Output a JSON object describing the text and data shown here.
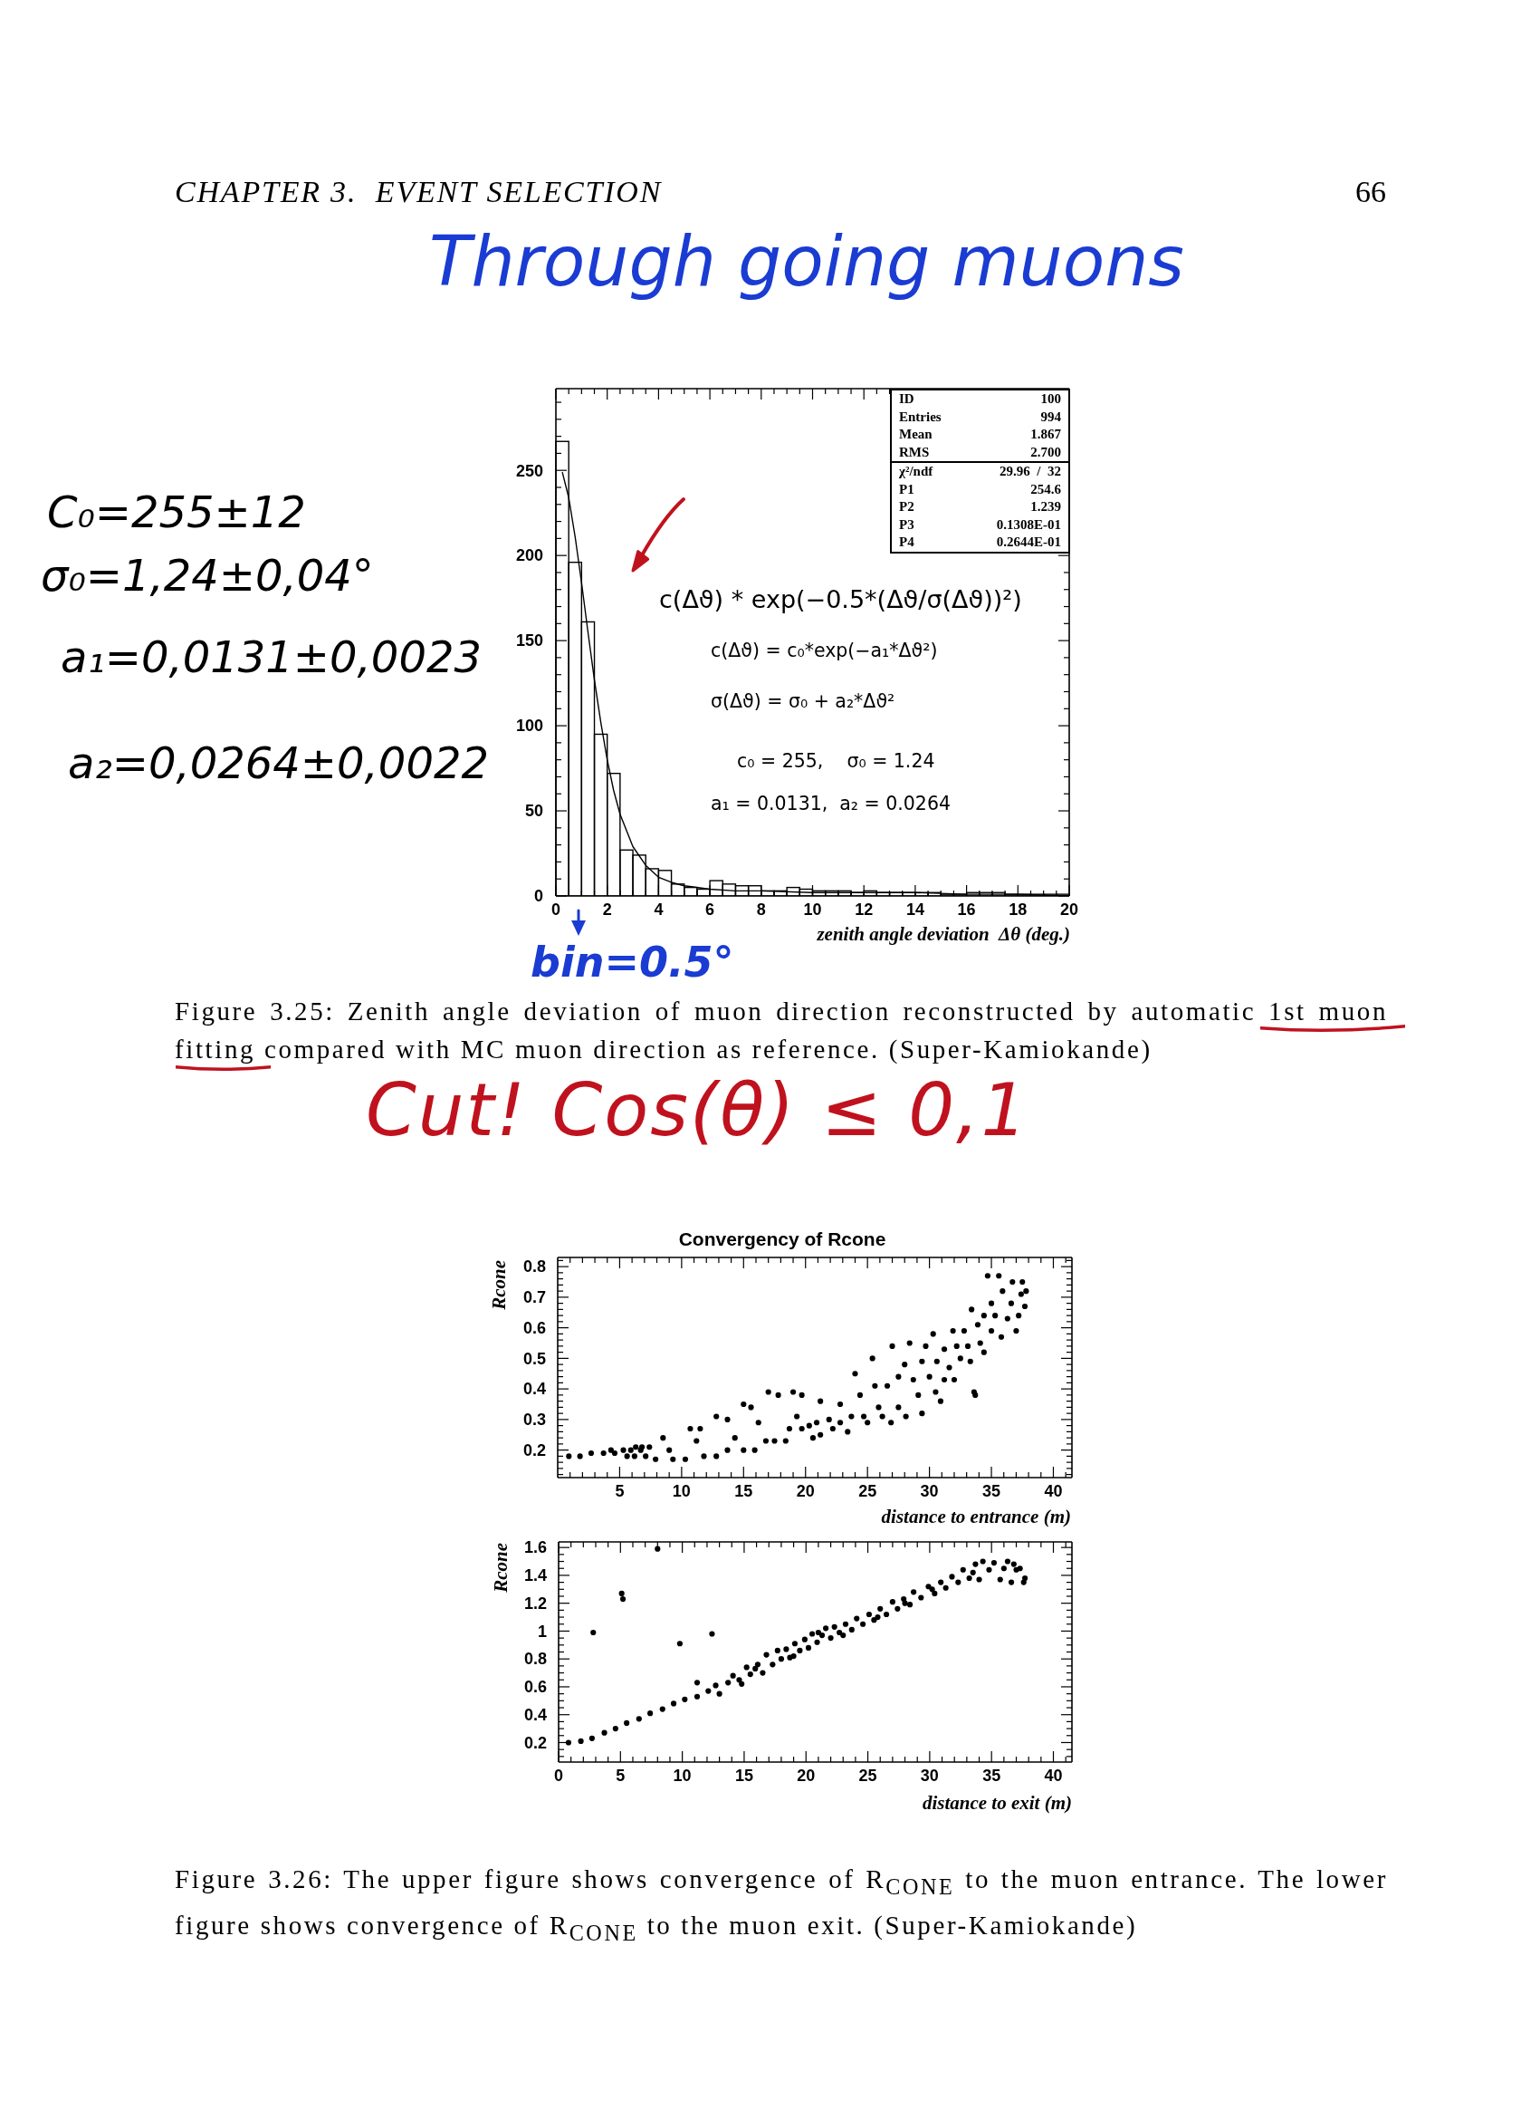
{
  "chart_data": [
    {
      "type": "histogram",
      "title": "Through going muons",
      "xlabel": "zenith angle deviation  Δθ (deg.)",
      "bins": [
        0,
        0.5,
        1,
        1.5,
        2,
        2.5,
        3,
        3.5,
        4,
        4.5,
        5,
        5.5,
        6,
        6.5,
        7,
        7.5,
        8,
        8.5,
        9,
        9.5,
        10,
        10.5,
        11,
        11.5,
        12,
        12.5,
        13,
        13.5,
        14,
        14.5,
        15,
        15.5,
        16,
        16.5,
        17,
        17.5,
        18,
        18.5,
        19,
        19.5,
        20
      ],
      "series": [
        {
          "type": "histogram",
          "color": "#000000",
          "values": [
            267,
            196,
            161,
            95,
            72,
            27,
            24,
            16,
            15,
            7,
            5,
            4,
            9,
            7,
            6,
            6,
            3,
            3,
            5,
            4,
            3,
            3,
            3,
            2,
            3,
            2,
            2,
            2,
            2,
            2,
            1,
            1,
            2,
            2,
            2,
            1,
            1,
            1,
            1,
            1
          ]
        },
        {
          "type": "line",
          "color": "#000000",
          "x": [
            0.25,
            0.5,
            0.75,
            1,
            1.25,
            1.5,
            1.75,
            2,
            2.25,
            2.5,
            3,
            3.5,
            4,
            4.5,
            5,
            6,
            7,
            8,
            10,
            12,
            14,
            16,
            18,
            20
          ],
          "values": [
            249,
            234,
            211,
            184,
            155,
            127,
            102,
            80,
            62,
            48,
            29,
            18,
            11,
            8,
            6,
            4,
            3,
            3,
            2,
            2,
            2,
            1,
            1,
            0
          ]
        }
      ],
      "xlim": [
        0,
        20
      ],
      "xticks": [
        0,
        {
          "value": 0.5,
          "label": null
        },
        {
          "value": 1,
          "label": null
        },
        {
          "value": 1.5,
          "label": null
        },
        2,
        {
          "value": 2.5,
          "label": null
        },
        {
          "value": 3,
          "label": null
        },
        {
          "value": 3.5,
          "label": null
        },
        4,
        {
          "value": 4.5,
          "label": null
        },
        {
          "value": 5,
          "label": null
        },
        {
          "value": 5.5,
          "label": null
        },
        6,
        {
          "value": 6.5,
          "label": null
        },
        {
          "value": 7,
          "label": null
        },
        {
          "value": 7.5,
          "label": null
        },
        8,
        {
          "value": 8.5,
          "label": null
        },
        {
          "value": 9,
          "label": null
        },
        {
          "value": 9.5,
          "label": null
        },
        10,
        {
          "value": 10.5,
          "label": null
        },
        {
          "value": 11,
          "label": null
        },
        {
          "value": 11.5,
          "label": null
        },
        12,
        {
          "value": 12.5,
          "label": null
        },
        {
          "value": 13,
          "label": null
        },
        {
          "value": 13.5,
          "label": null
        },
        14,
        {
          "value": 14.5,
          "label": null
        },
        {
          "value": 15,
          "label": null
        },
        {
          "value": 15.5,
          "label": null
        },
        16,
        {
          "value": 16.5,
          "label": null
        },
        {
          "value": 17,
          "label": null
        },
        {
          "value": 17.5,
          "label": null
        },
        18,
        {
          "value": 18.5,
          "label": null
        },
        {
          "value": 19,
          "label": null
        },
        {
          "value": 19.5,
          "label": null
        },
        20
      ],
      "ylim": [
        0,
        298
      ],
      "yticks": [
        0,
        {
          "value": 10,
          "label": null
        },
        {
          "value": 20,
          "label": null
        },
        {
          "value": 30,
          "label": null
        },
        {
          "value": 40,
          "label": null
        },
        50,
        {
          "value": 60,
          "label": null
        },
        {
          "value": 70,
          "label": null
        },
        {
          "value": 80,
          "label": null
        },
        {
          "value": 90,
          "label": null
        },
        100,
        {
          "value": 110,
          "label": null
        },
        {
          "value": 120,
          "label": null
        },
        {
          "value": 130,
          "label": null
        },
        {
          "value": 140,
          "label": null
        },
        150,
        {
          "value": 160,
          "label": null
        },
        {
          "value": 170,
          "label": null
        },
        {
          "value": 180,
          "label": null
        },
        {
          "value": 190,
          "label": null
        },
        200,
        {
          "value": 210,
          "label": null
        },
        {
          "value": 220,
          "label": null
        },
        {
          "value": 230,
          "label": null
        },
        {
          "value": 240,
          "label": null
        },
        250,
        {
          "value": 260,
          "label": null
        },
        {
          "value": 270,
          "label": null
        },
        {
          "value": 280,
          "label": null
        },
        {
          "value": 290,
          "label": null
        }
      ],
      "annotations": [
        "CHAPTER 3.  EVENT SELECTION",
        "66",
        "ID",
        "100",
        "Entries",
        "994",
        "Mean",
        "1.867",
        "RMS",
        "2.700",
        "χ²/ndf",
        "29.96  /  32",
        "P1",
        "254.6",
        "P2",
        "1.239",
        "P3",
        "0.1308E-01",
        "P4",
        "0.2644E-01",
        "c(Δϑ) * exp(−0.5*(Δϑ/σ(Δϑ))²)",
        "c(Δϑ) = c₀*exp(−a₁*Δϑ²)",
        "σ(Δϑ) = σ₀ + a₂*Δϑ²",
        "c₀ = 255,    σ₀ = 1.24",
        "a₁ = 0.0131,  a₂ = 0.0264",
        "C₀=255±12",
        "σ₀=1,24±0,04°",
        "a₁=0,0131±0,0023",
        "a₂=0,0264±0,0022",
        "bin=0.5°",
        "Figure 3.25: Zenith angle deviation of muon direction reconstructed by automatic 1st muon fitting compared with MC muon direction as reference. (Super-Kamiokande)",
        "Cut! Cos(θ) ≤ 0,1"
      ]
    },
    {
      "type": "scatter",
      "title": "Convergency of Rcone",
      "xlabel": "distance to entrance (m)",
      "ylabel": "Rcone",
      "color": "#000000",
      "marker": "circle",
      "x": [
        0.9,
        1.8,
        2.7,
        3.7,
        4.6,
        5.3,
        5.9,
        6.3,
        6.8,
        6.2,
        5.6,
        7.1,
        4.3,
        6.7,
        7.4,
        7.9,
        8.5,
        9.0,
        9.3,
        10.3,
        10.7,
        11.5,
        11.2,
        11.8,
        12.8,
        12.8,
        13.7,
        13.7,
        14.3,
        15.0,
        15.6,
        15.0,
        15.9,
        16.2,
        16.8,
        17.0,
        17.8,
        17.5,
        18.4,
        18.7,
        19.0,
        19.7,
        19.3,
        19.7,
        20.3,
        20.9,
        20.6,
        21.2,
        21.2,
        21.9,
        22.2,
        22.8,
        22.8,
        23.4,
        23.7,
        24.0,
        24.4,
        24.7,
        25.0,
        25.4,
        25.6,
        25.9,
        26.2,
        26.6,
        26.9,
        27.0,
        27.5,
        27.5,
        28.0,
        28.1,
        28.4,
        28.7,
        29.1,
        29.4,
        29.4,
        29.7,
        30.0,
        30.3,
        30.5,
        30.6,
        30.9,
        31.2,
        31.2,
        31.6,
        31.9,
        32.0,
        32.2,
        32.5,
        32.8,
        33.1,
        33.3,
        33.4,
        33.6,
        33.7,
        33.9,
        34.1,
        34.4,
        34.4,
        34.7,
        35.0,
        35.0,
        35.3,
        35.6,
        35.8,
        35.9,
        36.3,
        36.6,
        36.7,
        37.0,
        37.2,
        37.4,
        37.5,
        37.7,
        37.8
      ],
      "values": [
        0.18,
        0.18,
        0.19,
        0.19,
        0.19,
        0.2,
        0.2,
        0.21,
        0.21,
        0.18,
        0.18,
        0.18,
        0.2,
        0.2,
        0.21,
        0.17,
        0.24,
        0.2,
        0.17,
        0.17,
        0.27,
        0.27,
        0.23,
        0.18,
        0.18,
        0.31,
        0.3,
        0.2,
        0.24,
        0.35,
        0.34,
        0.2,
        0.2,
        0.29,
        0.23,
        0.39,
        0.38,
        0.23,
        0.23,
        0.27,
        0.39,
        0.38,
        0.31,
        0.27,
        0.28,
        0.29,
        0.24,
        0.25,
        0.36,
        0.3,
        0.27,
        0.35,
        0.29,
        0.26,
        0.31,
        0.45,
        0.38,
        0.31,
        0.29,
        0.5,
        0.41,
        0.34,
        0.31,
        0.41,
        0.29,
        0.54,
        0.44,
        0.34,
        0.48,
        0.31,
        0.55,
        0.43,
        0.38,
        0.32,
        0.49,
        0.54,
        0.44,
        0.58,
        0.39,
        0.49,
        0.36,
        0.53,
        0.43,
        0.47,
        0.59,
        0.43,
        0.54,
        0.5,
        0.59,
        0.54,
        0.49,
        0.66,
        0.39,
        0.38,
        0.61,
        0.55,
        0.64,
        0.52,
        0.77,
        0.59,
        0.68,
        0.64,
        0.77,
        0.57,
        0.72,
        0.63,
        0.68,
        0.75,
        0.59,
        0.64,
        0.71,
        0.75,
        0.67,
        0.72
      ],
      "xlim": [
        0,
        41.5
      ],
      "xticks": [
        {
          "value": 1,
          "label": null
        },
        {
          "value": 2,
          "label": null
        },
        {
          "value": 3,
          "label": null
        },
        {
          "value": 4,
          "label": null
        },
        5,
        {
          "value": 6,
          "label": null
        },
        {
          "value": 7,
          "label": null
        },
        {
          "value": 8,
          "label": null
        },
        {
          "value": 9,
          "label": null
        },
        10,
        {
          "value": 11,
          "label": null
        },
        {
          "value": 12,
          "label": null
        },
        {
          "value": 13,
          "label": null
        },
        {
          "value": 14,
          "label": null
        },
        15,
        {
          "value": 16,
          "label": null
        },
        {
          "value": 17,
          "label": null
        },
        {
          "value": 18,
          "label": null
        },
        {
          "value": 19,
          "label": null
        },
        20,
        {
          "value": 21,
          "label": null
        },
        {
          "value": 22,
          "label": null
        },
        {
          "value": 23,
          "label": null
        },
        {
          "value": 24,
          "label": null
        },
        25,
        {
          "value": 26,
          "label": null
        },
        {
          "value": 27,
          "label": null
        },
        {
          "value": 28,
          "label": null
        },
        {
          "value": 29,
          "label": null
        },
        30,
        {
          "value": 31,
          "label": null
        },
        {
          "value": 32,
          "label": null
        },
        {
          "value": 33,
          "label": null
        },
        {
          "value": 34,
          "label": null
        },
        35,
        {
          "value": 36,
          "label": null
        },
        {
          "value": 37,
          "label": null
        },
        {
          "value": 38,
          "label": null
        },
        {
          "value": 39,
          "label": null
        },
        40,
        {
          "value": 41,
          "label": null
        }
      ],
      "ylim": [
        0.11,
        0.83
      ],
      "yticks": [
        {
          "value": 0.12,
          "label": null
        },
        {
          "value": 0.14,
          "label": null
        },
        {
          "value": 0.16,
          "label": null
        },
        {
          "value": 0.18,
          "label": null
        },
        0.2,
        {
          "value": 0.22,
          "label": null
        },
        {
          "value": 0.24,
          "label": null
        },
        {
          "value": 0.26,
          "label": null
        },
        {
          "value": 0.28,
          "label": null
        },
        0.3,
        {
          "value": 0.32,
          "label": null
        },
        {
          "value": 0.34,
          "label": null
        },
        {
          "value": 0.36,
          "label": null
        },
        {
          "value": 0.38,
          "label": null
        },
        0.4,
        {
          "value": 0.42,
          "label": null
        },
        {
          "value": 0.44,
          "label": null
        },
        {
          "value": 0.46,
          "label": null
        },
        {
          "value": 0.48,
          "label": null
        },
        0.5,
        {
          "value": 0.52,
          "label": null
        },
        {
          "value": 0.54,
          "label": null
        },
        {
          "value": 0.56,
          "label": null
        },
        {
          "value": 0.58,
          "label": null
        },
        0.6,
        {
          "value": 0.62,
          "label": null
        },
        {
          "value": 0.64,
          "label": null
        },
        {
          "value": 0.66,
          "label": null
        },
        {
          "value": 0.68,
          "label": null
        },
        0.7,
        {
          "value": 0.72,
          "label": null
        },
        {
          "value": 0.74,
          "label": null
        },
        {
          "value": 0.76,
          "label": null
        },
        {
          "value": 0.78,
          "label": null
        },
        0.8,
        {
          "value": 0.82,
          "label": null
        }
      ]
    },
    {
      "type": "scatter",
      "xlabel": "distance to exit (m)",
      "ylabel": "Rcone",
      "color": "#000000",
      "marker": "circle",
      "x": [
        0.8,
        1.8,
        2.7,
        3.7,
        4.6,
        5.5,
        6.5,
        7.4,
        8.4,
        9.3,
        10.2,
        11.2,
        12.1,
        12.7,
        13.0,
        13.7,
        14.1,
        14.6,
        14.8,
        15.2,
        15.5,
        15.9,
        16.1,
        16.5,
        16.8,
        17.3,
        17.7,
        18.0,
        18.4,
        18.7,
        19.0,
        19.1,
        19.5,
        19.9,
        20.2,
        20.5,
        20.9,
        21.0,
        21.3,
        21.6,
        22.0,
        22.3,
        22.7,
        23.0,
        23.2,
        23.7,
        24.1,
        24.6,
        25.1,
        25.5,
        25.8,
        26.0,
        26.5,
        27.0,
        27.4,
        27.9,
        28.0,
        28.4,
        28.7,
        29.3,
        29.9,
        30.2,
        30.4,
        30.9,
        31.3,
        31.8,
        32.3,
        32.7,
        33.2,
        33.5,
        33.7,
        34.0,
        34.3,
        34.8,
        35.2,
        35.7,
        36.0,
        36.3,
        36.6,
        36.8,
        37.0,
        37.3,
        37.6,
        37.7,
        2.8,
        5.1,
        5.2,
        8.0,
        9.8,
        12.4,
        11.2
      ],
      "values": [
        0.2,
        0.21,
        0.23,
        0.27,
        0.3,
        0.34,
        0.37,
        0.41,
        0.44,
        0.48,
        0.51,
        0.53,
        0.57,
        0.61,
        0.55,
        0.63,
        0.68,
        0.65,
        0.62,
        0.74,
        0.69,
        0.73,
        0.76,
        0.7,
        0.83,
        0.76,
        0.86,
        0.8,
        0.87,
        0.81,
        0.82,
        0.91,
        0.86,
        0.94,
        0.88,
        0.98,
        0.92,
        0.99,
        0.97,
        1.02,
        0.95,
        1.03,
        0.99,
        0.97,
        1.05,
        1.01,
        1.09,
        1.05,
        1.12,
        1.08,
        1.1,
        1.16,
        1.12,
        1.21,
        1.16,
        1.23,
        1.2,
        1.19,
        1.28,
        1.24,
        1.32,
        1.3,
        1.27,
        1.35,
        1.31,
        1.39,
        1.35,
        1.44,
        1.38,
        1.42,
        1.48,
        1.37,
        1.5,
        1.44,
        1.49,
        1.37,
        1.45,
        1.5,
        1.35,
        1.48,
        1.44,
        1.45,
        1.35,
        1.38,
        0.99,
        1.27,
        1.23,
        1.59,
        0.91,
        0.98,
        0.63
      ],
      "xlim": [
        0,
        41.5
      ],
      "xticks": [
        0,
        {
          "value": 1,
          "label": null
        },
        {
          "value": 2,
          "label": null
        },
        {
          "value": 3,
          "label": null
        },
        {
          "value": 4,
          "label": null
        },
        5,
        {
          "value": 6,
          "label": null
        },
        {
          "value": 7,
          "label": null
        },
        {
          "value": 8,
          "label": null
        },
        {
          "value": 9,
          "label": null
        },
        10,
        {
          "value": 11,
          "label": null
        },
        {
          "value": 12,
          "label": null
        },
        {
          "value": 13,
          "label": null
        },
        {
          "value": 14,
          "label": null
        },
        15,
        {
          "value": 16,
          "label": null
        },
        {
          "value": 17,
          "label": null
        },
        {
          "value": 18,
          "label": null
        },
        {
          "value": 19,
          "label": null
        },
        20,
        {
          "value": 21,
          "label": null
        },
        {
          "value": 22,
          "label": null
        },
        {
          "value": 23,
          "label": null
        },
        {
          "value": 24,
          "label": null
        },
        25,
        {
          "value": 26,
          "label": null
        },
        {
          "value": 27,
          "label": null
        },
        {
          "value": 28,
          "label": null
        },
        {
          "value": 29,
          "label": null
        },
        30,
        {
          "value": 31,
          "label": null
        },
        {
          "value": 32,
          "label": null
        },
        {
          "value": 33,
          "label": null
        },
        {
          "value": 34,
          "label": null
        },
        35,
        {
          "value": 36,
          "label": null
        },
        {
          "value": 37,
          "label": null
        },
        {
          "value": 38,
          "label": null
        },
        {
          "value": 39,
          "label": null
        },
        40,
        {
          "value": 41,
          "label": null
        }
      ],
      "ylim": [
        0.06,
        1.64
      ],
      "yticks": [
        {
          "value": 0.1,
          "label": null
        },
        {
          "value": 0.15,
          "label": null
        },
        0.2,
        {
          "value": 0.25,
          "label": null
        },
        {
          "value": 0.3,
          "label": null
        },
        {
          "value": 0.35,
          "label": null
        },
        0.4,
        {
          "value": 0.45,
          "label": null
        },
        {
          "value": 0.5,
          "label": null
        },
        {
          "value": 0.55,
          "label": null
        },
        0.6,
        {
          "value": 0.65,
          "label": null
        },
        {
          "value": 0.7,
          "label": null
        },
        {
          "value": 0.75,
          "label": null
        },
        0.8,
        {
          "value": 0.85,
          "label": null
        },
        {
          "value": 0.9,
          "label": null
        },
        {
          "value": 0.95,
          "label": null
        },
        1,
        {
          "value": 1.05,
          "label": null
        },
        {
          "value": 1.1,
          "label": null
        },
        {
          "value": 1.15,
          "label": null
        },
        1.2,
        {
          "value": 1.25,
          "label": null
        },
        {
          "value": 1.3,
          "label": null
        },
        {
          "value": 1.35,
          "label": null
        },
        1.4,
        {
          "value": 1.45,
          "label": null
        },
        {
          "value": 1.5,
          "label": null
        },
        {
          "value": 1.55,
          "label": null
        },
        1.6
      ],
      "annotations": [
        "Figure 3.26: The upper figure shows convergence of R$_{CONE}$ to the muon entrance. The lower figure shows convergence of R$_{CONE}$ to the muon exit. (Super-Kamiokande)"
      ]
    }
  ]
}
